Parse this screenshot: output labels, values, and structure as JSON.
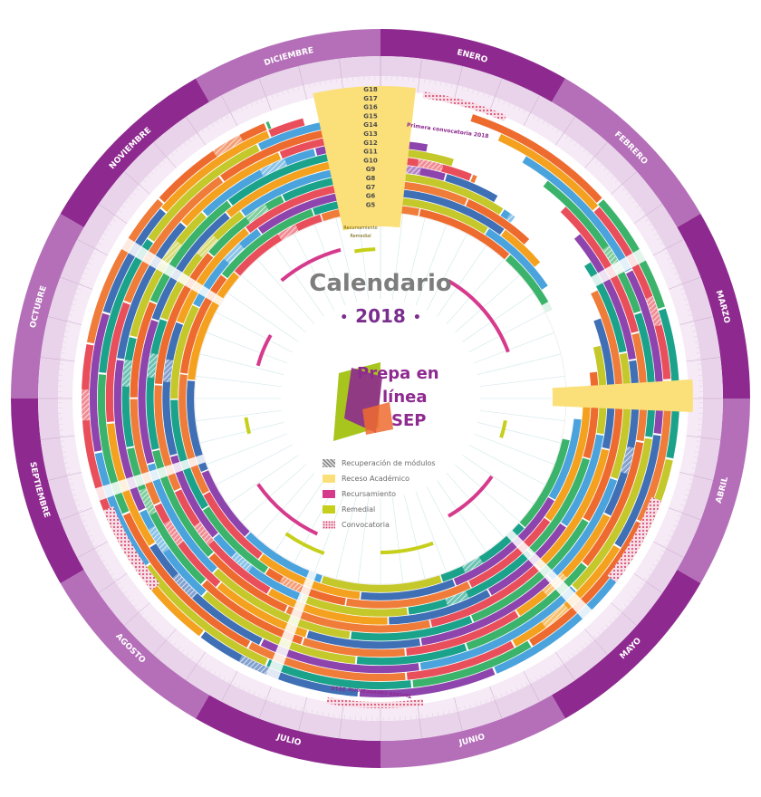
{
  "title": "Calendario",
  "year": "2018",
  "months": [
    "ENERO",
    "FEBRERO",
    "MARZO",
    "ABRIL",
    "MAYO",
    "JUNIO",
    "JULIO",
    "AGOSTO",
    "SEPTIEMBRE",
    "OCTUBRE",
    "NOVIEMBRE",
    "DICIEMBRE"
  ],
  "logo": {
    "line1": "Prepa en",
    "line2": "línea",
    "line3": "SEP"
  },
  "legend": [
    {
      "label": "Recuperación de módulos",
      "swatch": "hatch"
    },
    {
      "label": "Receso Académico",
      "swatch": "yellow"
    },
    {
      "label": "Recursamiento",
      "swatch": "magenta"
    },
    {
      "label": "Remedial",
      "swatch": "lime"
    },
    {
      "label": "Convocatoria",
      "swatch": "dots"
    }
  ],
  "groups": [
    "G18",
    "G17",
    "G16",
    "G15",
    "G14",
    "G13",
    "G12",
    "G11",
    "G10",
    "G9",
    "G8",
    "G7",
    "G6",
    "G5"
  ],
  "band_notes": {
    "recursamiento": "Recursamiento",
    "remedial": "Remedial"
  },
  "convocatorias": [
    "Primera convocatoria 2018",
    "Tercera convocatoria 2018"
  ],
  "colors": {
    "outer_ring": "#8e2a8f",
    "month_band": "#b46fb8",
    "receso": "#fbe07a",
    "recursamiento": "#d63a8c",
    "remedial": "#c6cf1a",
    "palette": [
      "#ee6b2f",
      "#f4a11f",
      "#4aa3dc",
      "#3bb36a",
      "#e94e5b",
      "#8e44ad",
      "#1aa38a",
      "#f07c3a",
      "#3f6fb5",
      "#c4c82a"
    ]
  }
}
